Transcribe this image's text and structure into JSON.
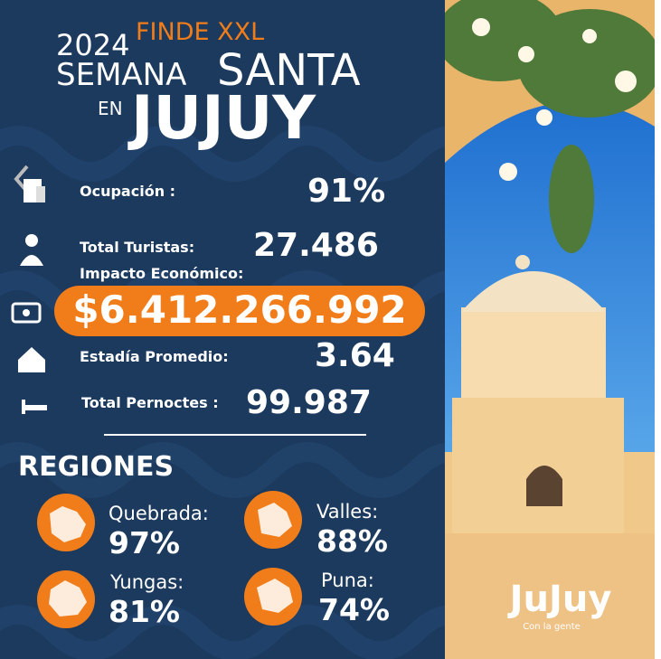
{
  "header": {
    "year": "2024",
    "tag": "FINDE XXL",
    "line1": "SEMANA",
    "line2": "SANTA",
    "line3": "EN",
    "place": "JUJUY"
  },
  "stats": [
    {
      "label": "Ocupación :",
      "value": "91%"
    },
    {
      "label": "Total Turistas:",
      "value": "27.486"
    },
    {
      "label": "Impacto Económico:",
      "value": "$6.412.266.992"
    },
    {
      "label": "Estadía Promedio:",
      "value": "3.64"
    },
    {
      "label": "Total Pernoctes :",
      "value": "99.987"
    }
  ],
  "regions": {
    "title": "REGIONES",
    "items": [
      {
        "name": "Quebrada:",
        "value": "97%"
      },
      {
        "name": "Valles:",
        "value": "88%"
      },
      {
        "name": "Yungas:",
        "value": "81%"
      },
      {
        "name": "Puna:",
        "value": "74%"
      }
    ]
  },
  "logo": {
    "name": "JuJuy",
    "slogan": "Con la gente"
  }
}
